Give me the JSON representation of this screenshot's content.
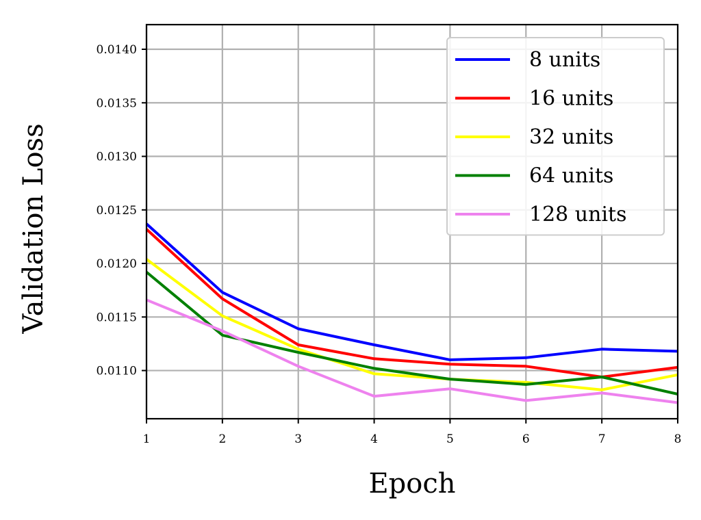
{
  "chart_data": {
    "type": "line",
    "title": "",
    "xlabel": "Epoch",
    "ylabel": "Validation Loss",
    "x": [
      1,
      2,
      3,
      4,
      5,
      6,
      7,
      8
    ],
    "xlim": [
      1,
      8
    ],
    "ylim": [
      0.01055,
      0.01423
    ],
    "xticks": [
      "1",
      "2",
      "3",
      "4",
      "5",
      "6",
      "7",
      "8"
    ],
    "yticks": [
      0.011,
      0.0115,
      0.012,
      0.0125,
      0.013,
      0.0135,
      0.014
    ],
    "ytick_labels": [
      "0.0110",
      "0.0115",
      "0.0120",
      "0.0125",
      "0.0130",
      "0.0135",
      "0.0140"
    ],
    "grid": true,
    "legend_position": "top-right",
    "series": [
      {
        "name": "8 units",
        "color": "#0000ff",
        "values": [
          0.01237,
          0.01173,
          0.01139,
          0.01124,
          0.0111,
          0.01112,
          0.0112,
          0.01118
        ]
      },
      {
        "name": "16 units",
        "color": "#ff0000",
        "values": [
          0.01232,
          0.01167,
          0.01124,
          0.01111,
          0.01106,
          0.01104,
          0.01094,
          0.01103
        ]
      },
      {
        "name": "32 units",
        "color": "#ffff00",
        "values": [
          0.01204,
          0.01151,
          0.0112,
          0.01097,
          0.01092,
          0.01089,
          0.01082,
          0.01096
        ]
      },
      {
        "name": "64 units",
        "color": "#008000",
        "values": [
          0.01192,
          0.01133,
          0.01117,
          0.01102,
          0.01092,
          0.01087,
          0.01094,
          0.01078
        ]
      },
      {
        "name": "128 units",
        "color": "#ee82ee",
        "values": [
          0.01166,
          0.01137,
          0.01104,
          0.01076,
          0.01083,
          0.01072,
          0.01079,
          0.0107
        ]
      }
    ]
  }
}
